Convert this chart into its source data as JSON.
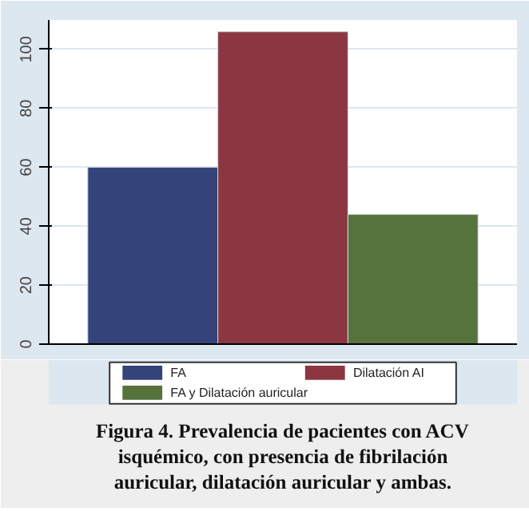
{
  "chart_data": {
    "type": "bar",
    "categories": [
      null
    ],
    "series": [
      {
        "name": "FA",
        "color": "#34447a",
        "values": [
          60
        ]
      },
      {
        "name": "Dilatación AI",
        "color": "#8b3641",
        "values": [
          106
        ]
      },
      {
        "name": "FA y Dilatación auricular",
        "color": "#56733e",
        "values": [
          44
        ]
      }
    ],
    "ylim": [
      0,
      110
    ],
    "yticks": [
      0,
      20,
      40,
      60,
      80,
      100
    ],
    "grid": "y",
    "legend": "bottom",
    "tick_labels": "y",
    "annotations": [
      "Figura 4. Prevalencia de pacientes con ACV isquémico, con presencia de fibrilación auricular, dilatación auricular y ambas."
    ]
  }
}
